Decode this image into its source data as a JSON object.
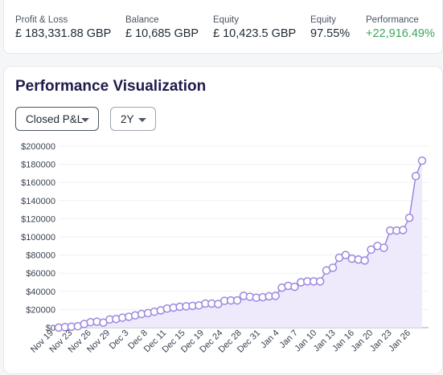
{
  "stats": [
    {
      "label": "Profit & Loss",
      "value": "£ 183,331.88 GBP",
      "positive": false
    },
    {
      "label": "Balance",
      "value": "£ 10,685 GBP",
      "positive": false
    },
    {
      "label": "Equity",
      "value": "£ 10,423.5 GBP",
      "positive": false
    },
    {
      "label": "Equity",
      "value": "97.55%",
      "positive": false
    },
    {
      "label": "Performance",
      "value": "+22,916.49%",
      "positive": true
    }
  ],
  "viz": {
    "title": "Performance Visualization",
    "metric_select": "Closed P&L",
    "period_select": "2Y"
  },
  "colors": {
    "accent": "#9b87e0",
    "fill": "#efeafb",
    "positive": "#3aa65b",
    "title": "#1e1b4b"
  },
  "chart_data": {
    "type": "area",
    "title": "",
    "xlabel": "",
    "ylabel": "",
    "ylim": [
      0,
      200000
    ],
    "y_ticks": [
      "$0",
      "$20000",
      "$40000",
      "$60000",
      "$80000",
      "$100000",
      "$120000",
      "$140000",
      "$160000",
      "$180000",
      "$200000"
    ],
    "x_tick_labels": [
      "Nov 19",
      "Nov 23",
      "Nov 26",
      "Nov 29",
      "Dec 3",
      "Dec 8",
      "Dec 11",
      "Dec 15",
      "Dec 19",
      "Dec 24",
      "Dec 28",
      "Dec 31",
      "Jan 4",
      "Jan 7",
      "Jan 10",
      "Jan 13",
      "Jan 16",
      "Jan 20",
      "Jan 23",
      "Jan 26"
    ],
    "grid": true,
    "legend": "none",
    "series": [
      {
        "values": [
          0,
          500,
          1000,
          1500,
          4000,
          6000,
          6500,
          5500,
          9000,
          9500,
          11000,
          12000,
          13500,
          15000,
          16000,
          17500,
          19000,
          21000,
          22000,
          23000,
          23500,
          24000,
          24500,
          26500,
          26500,
          26000,
          29500,
          30000,
          30000,
          35000,
          34000,
          33000,
          33500,
          34500,
          35000,
          44000,
          46000,
          45000,
          50000,
          51000,
          51000,
          51000,
          63000,
          66000,
          77000,
          80000,
          76000,
          75000,
          74000,
          86000,
          90000,
          88000,
          107000,
          107000,
          107500,
          121000,
          167000,
          184000
        ]
      }
    ]
  }
}
